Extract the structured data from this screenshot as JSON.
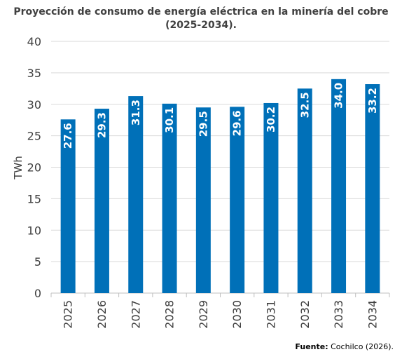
{
  "chart_data": {
    "type": "bar",
    "title_line1": "Proyección de consumo de energía eléctrica en la minería del cobre",
    "title_line2": "(2025-2034).",
    "xlabel": "",
    "ylabel": "TWh",
    "ylim": [
      0,
      40
    ],
    "yticks": [
      0,
      5,
      10,
      15,
      20,
      25,
      30,
      35,
      40
    ],
    "categories": [
      "2025",
      "2026",
      "2027",
      "2028",
      "2029",
      "2030",
      "2031",
      "2032",
      "2033",
      "2034"
    ],
    "values": [
      27.6,
      29.3,
      31.3,
      30.1,
      29.5,
      29.6,
      30.2,
      32.5,
      34.0,
      33.2
    ],
    "value_labels": [
      "27.6",
      "29.3",
      "31.3",
      "30.1",
      "29.5",
      "29.6",
      "30.2",
      "32.5",
      "34.0",
      "33.2"
    ],
    "grid": true,
    "legend": "none",
    "bar_color": "#0070b8",
    "label_color": "#ffffff"
  },
  "source": {
    "label": "Fuente:",
    "text": "Cochilco (2026)."
  }
}
